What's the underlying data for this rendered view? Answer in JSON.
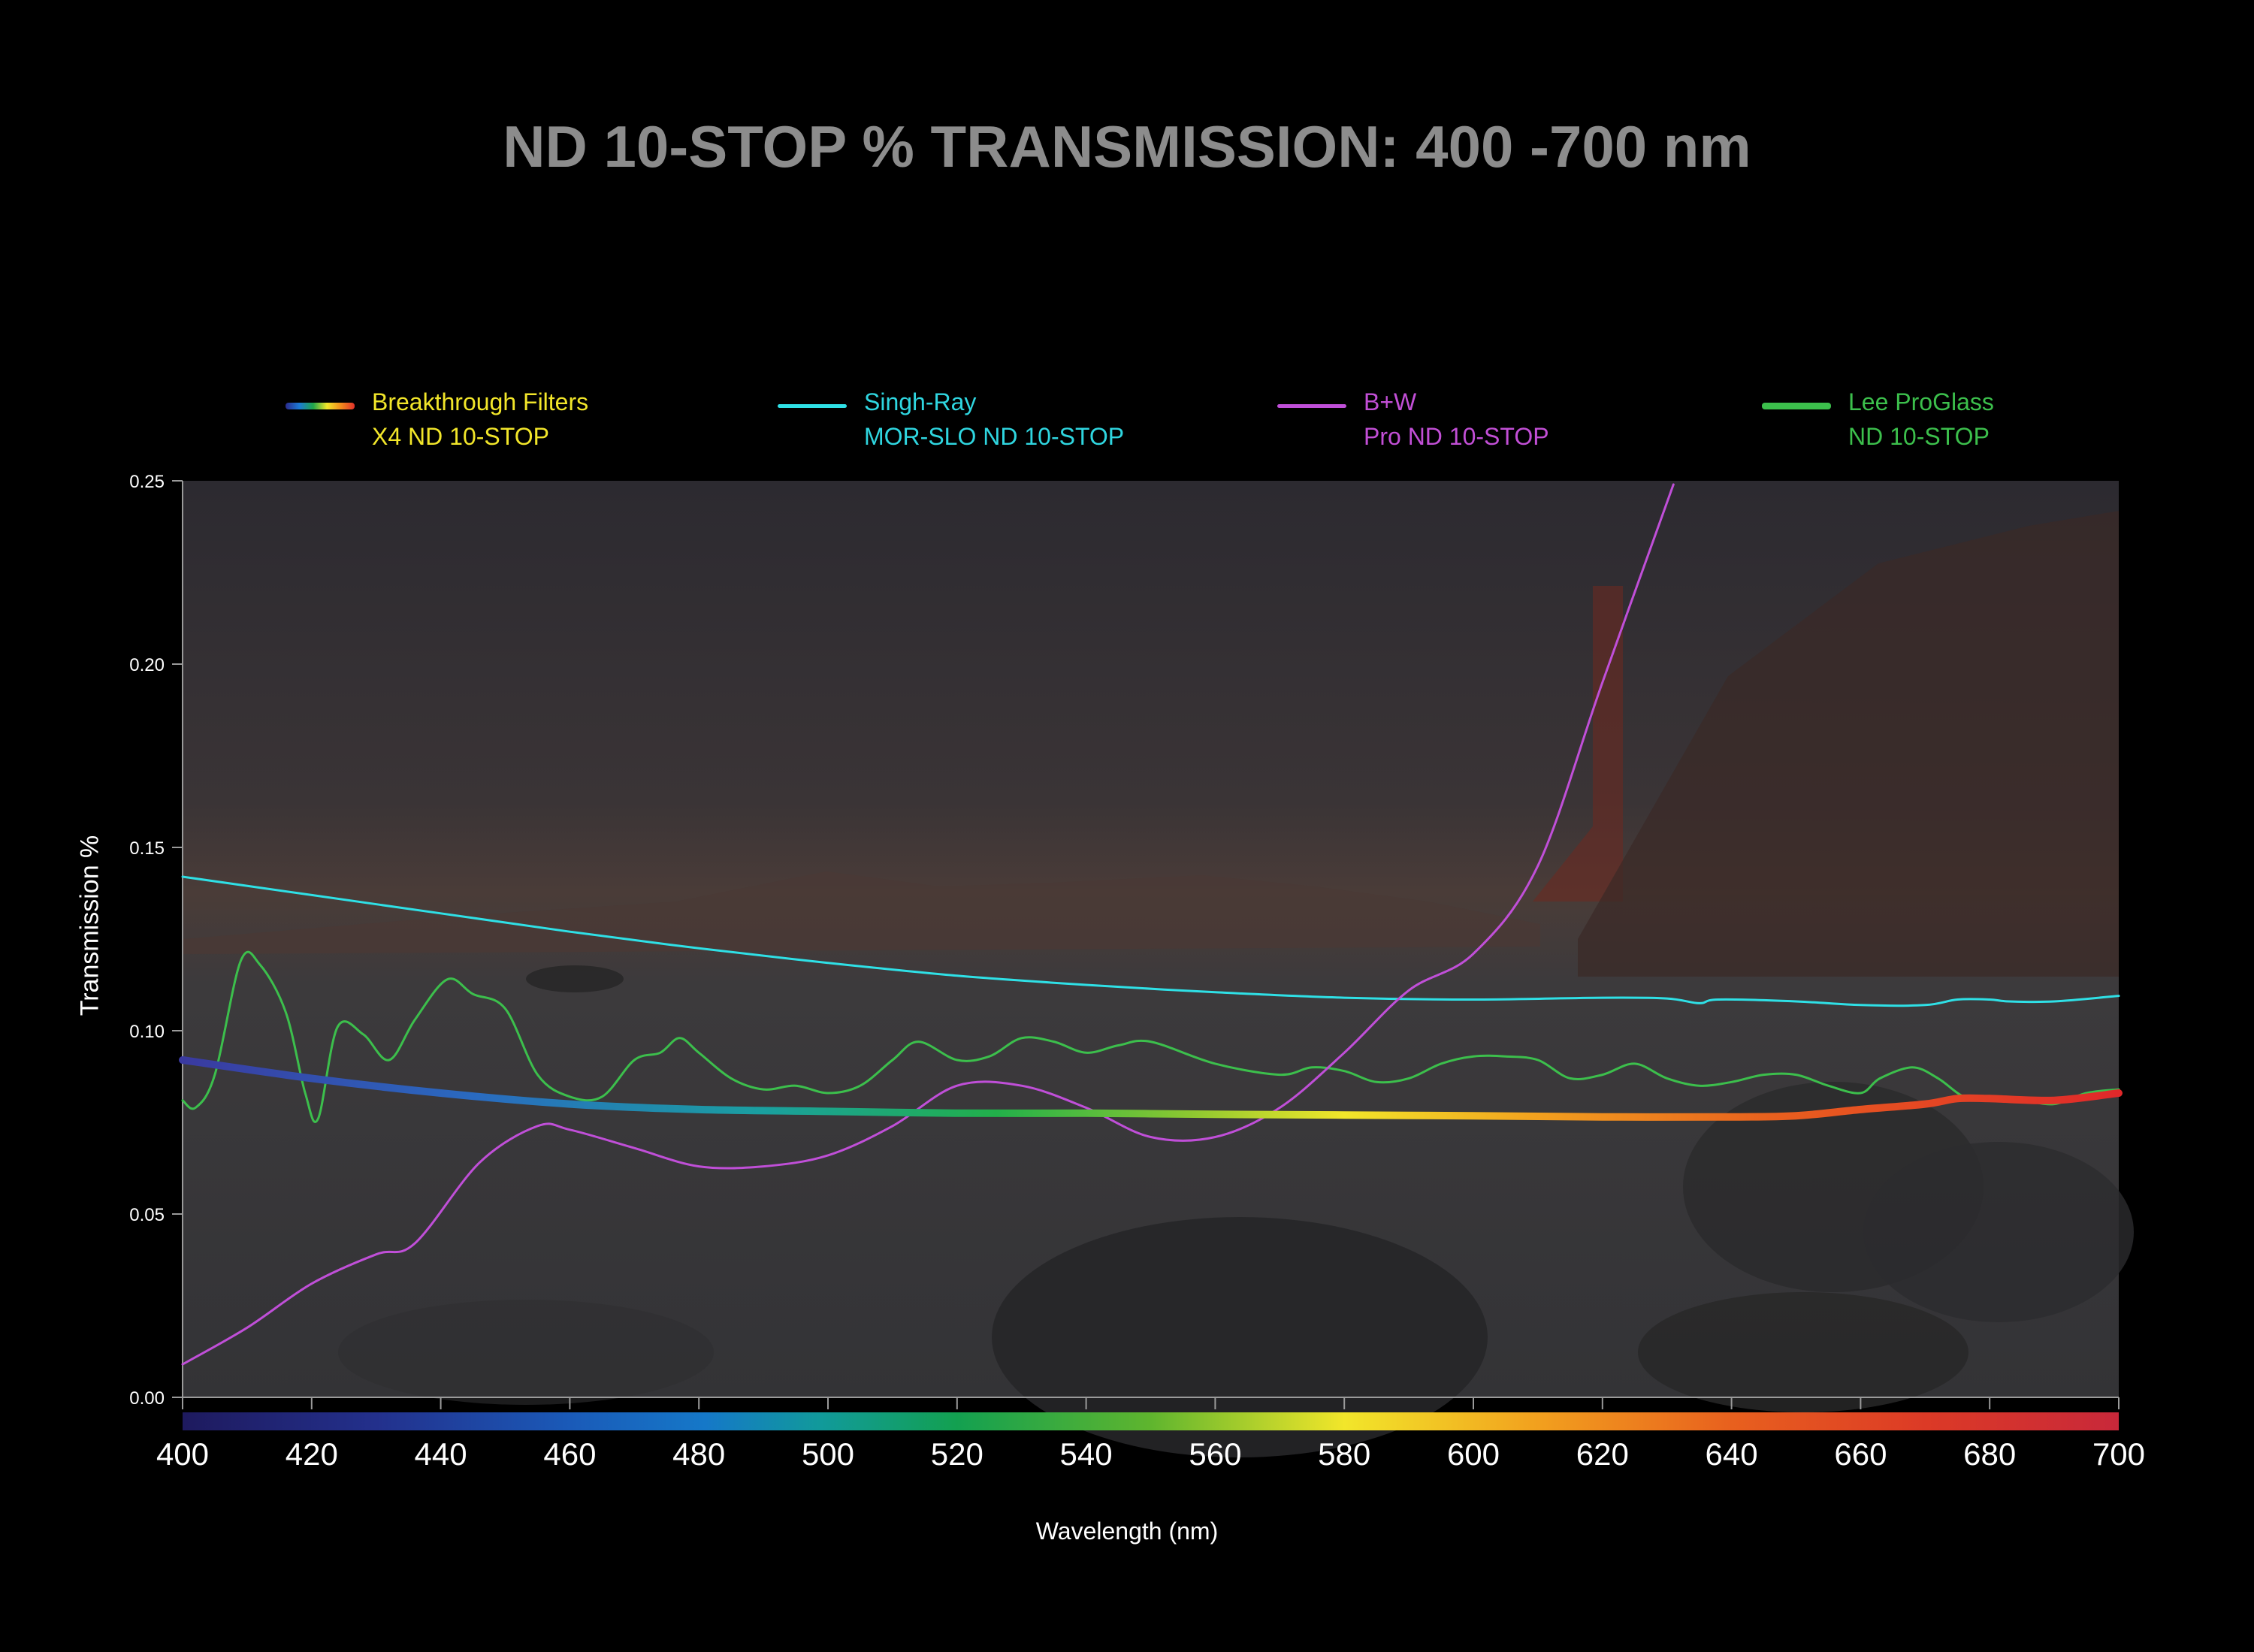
{
  "title": "ND 10-STOP % TRANSMISSION: 400 -700 nm",
  "legend": [
    {
      "line1": "Breakthrough Filters",
      "line2": "X4 ND 10-STOP",
      "text_color": "#f2e62a",
      "swatch": "rainbow"
    },
    {
      "line1": "Singh-Ray",
      "line2": "MOR-SLO ND 10-STOP",
      "text_color": "#2fd6e0",
      "swatch": "#2fe0e6"
    },
    {
      "line1": "B+W",
      "line2": "Pro ND 10-STOP",
      "text_color": "#c24fd6",
      "swatch": "#c04fd8"
    },
    {
      "line1": "Lee ProGlass",
      "line2": "ND 10-STOP",
      "text_color": "#3cbf4c",
      "swatch": "#3cbf4c"
    }
  ],
  "chart_data": {
    "type": "line",
    "title": "ND 10-STOP % TRANSMISSION: 400 -700 nm",
    "xlabel": "Wavelength (nm)",
    "ylabel": "Transmission %",
    "xlim": [
      400,
      700
    ],
    "ylim": [
      0,
      0.25
    ],
    "x_ticks": [
      "400",
      "420",
      "440",
      "460",
      "480",
      "500",
      "520",
      "540",
      "560",
      "580",
      "600",
      "620",
      "640",
      "660",
      "680",
      "700"
    ],
    "y_ticks": [
      "0.00",
      "0.05",
      "0.10",
      "0.15",
      "0.20",
      "0.25"
    ],
    "grid": false,
    "legend_position": "top",
    "series": [
      {
        "name": "Breakthrough Filters X4 ND 10-STOP",
        "color": "rainbow",
        "points": [
          [
            400,
            0.092
          ],
          [
            420,
            0.087
          ],
          [
            440,
            0.083
          ],
          [
            460,
            0.08
          ],
          [
            480,
            0.0785
          ],
          [
            500,
            0.078
          ],
          [
            520,
            0.0775
          ],
          [
            540,
            0.0775
          ],
          [
            560,
            0.0772
          ],
          [
            580,
            0.077
          ],
          [
            600,
            0.0768
          ],
          [
            620,
            0.0765
          ],
          [
            640,
            0.0765
          ],
          [
            650,
            0.0768
          ],
          [
            660,
            0.0785
          ],
          [
            670,
            0.08
          ],
          [
            675,
            0.0815
          ],
          [
            680,
            0.0815
          ],
          [
            690,
            0.081
          ],
          [
            700,
            0.083
          ]
        ]
      },
      {
        "name": "Singh-Ray MOR-SLO ND 10-STOP",
        "color": "#2fe0e6",
        "points": [
          [
            400,
            0.142
          ],
          [
            420,
            0.137
          ],
          [
            440,
            0.132
          ],
          [
            460,
            0.127
          ],
          [
            480,
            0.1225
          ],
          [
            500,
            0.1185
          ],
          [
            520,
            0.115
          ],
          [
            540,
            0.1125
          ],
          [
            560,
            0.1105
          ],
          [
            580,
            0.109
          ],
          [
            600,
            0.1085
          ],
          [
            620,
            0.109
          ],
          [
            630,
            0.1088
          ],
          [
            635,
            0.1075
          ],
          [
            638,
            0.1085
          ],
          [
            650,
            0.108
          ],
          [
            660,
            0.107
          ],
          [
            670,
            0.107
          ],
          [
            675,
            0.1085
          ],
          [
            680,
            0.1085
          ],
          [
            683,
            0.108
          ],
          [
            690,
            0.108
          ],
          [
            700,
            0.1095
          ]
        ]
      },
      {
        "name": "B+W Pro ND 10-STOP",
        "color": "#c04fd8",
        "points": [
          [
            400,
            0.009
          ],
          [
            410,
            0.019
          ],
          [
            420,
            0.031
          ],
          [
            430,
            0.039
          ],
          [
            436,
            0.042
          ],
          [
            446,
            0.064
          ],
          [
            455,
            0.074
          ],
          [
            460,
            0.073
          ],
          [
            470,
            0.068
          ],
          [
            480,
            0.063
          ],
          [
            490,
            0.063
          ],
          [
            500,
            0.066
          ],
          [
            510,
            0.074
          ],
          [
            520,
            0.085
          ],
          [
            530,
            0.085
          ],
          [
            540,
            0.079
          ],
          [
            550,
            0.071
          ],
          [
            560,
            0.071
          ],
          [
            570,
            0.079
          ],
          [
            580,
            0.094
          ],
          [
            590,
            0.111
          ],
          [
            600,
            0.121
          ],
          [
            610,
            0.145
          ],
          [
            620,
            0.195
          ],
          [
            631,
            0.249
          ]
        ]
      },
      {
        "name": "Lee ProGlass ND 10-STOP",
        "color": "#3cbf4c",
        "points": [
          [
            400,
            0.081
          ],
          [
            402,
            0.079
          ],
          [
            405,
            0.088
          ],
          [
            409,
            0.119
          ],
          [
            412,
            0.118
          ],
          [
            416,
            0.105
          ],
          [
            419,
            0.083
          ],
          [
            421,
            0.076
          ],
          [
            424,
            0.101
          ],
          [
            428,
            0.099
          ],
          [
            432,
            0.092
          ],
          [
            436,
            0.103
          ],
          [
            441,
            0.114
          ],
          [
            445,
            0.11
          ],
          [
            450,
            0.106
          ],
          [
            455,
            0.088
          ],
          [
            460,
            0.082
          ],
          [
            465,
            0.082
          ],
          [
            470,
            0.092
          ],
          [
            474,
            0.094
          ],
          [
            477,
            0.098
          ],
          [
            480,
            0.094
          ],
          [
            485,
            0.087
          ],
          [
            490,
            0.084
          ],
          [
            495,
            0.085
          ],
          [
            500,
            0.083
          ],
          [
            505,
            0.085
          ],
          [
            510,
            0.092
          ],
          [
            514,
            0.097
          ],
          [
            520,
            0.092
          ],
          [
            525,
            0.093
          ],
          [
            530,
            0.098
          ],
          [
            535,
            0.097
          ],
          [
            540,
            0.094
          ],
          [
            545,
            0.096
          ],
          [
            550,
            0.097
          ],
          [
            560,
            0.091
          ],
          [
            570,
            0.088
          ],
          [
            575,
            0.09
          ],
          [
            580,
            0.089
          ],
          [
            585,
            0.086
          ],
          [
            590,
            0.087
          ],
          [
            595,
            0.091
          ],
          [
            600,
            0.093
          ],
          [
            605,
            0.093
          ],
          [
            610,
            0.092
          ],
          [
            615,
            0.087
          ],
          [
            620,
            0.088
          ],
          [
            625,
            0.091
          ],
          [
            630,
            0.087
          ],
          [
            635,
            0.085
          ],
          [
            640,
            0.086
          ],
          [
            645,
            0.088
          ],
          [
            650,
            0.088
          ],
          [
            655,
            0.085
          ],
          [
            660,
            0.083
          ],
          [
            663,
            0.087
          ],
          [
            668,
            0.09
          ],
          [
            672,
            0.087
          ],
          [
            676,
            0.082
          ],
          [
            680,
            0.081
          ],
          [
            685,
            0.081
          ],
          [
            690,
            0.08
          ],
          [
            695,
            0.083
          ],
          [
            700,
            0.084
          ]
        ]
      }
    ]
  },
  "colors": {
    "background": "#000000",
    "plot_background": "#3a3a3c",
    "axis": "#9a9a9a",
    "title": "#8c8c8c"
  }
}
